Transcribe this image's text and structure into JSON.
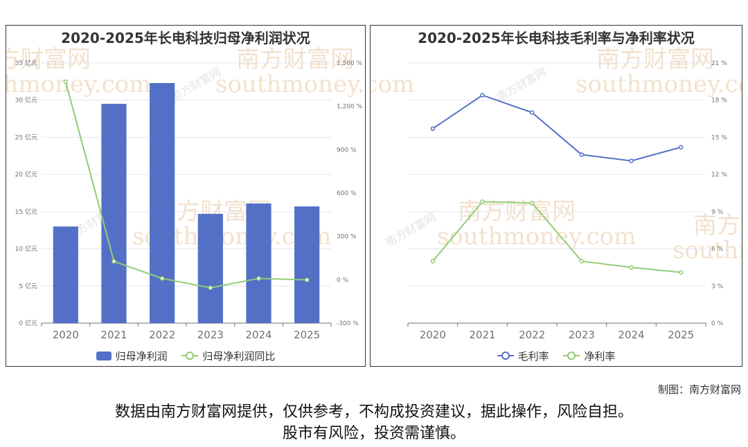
{
  "chart_data": [
    {
      "type": "bar",
      "title": "2020-2025年长电科技归母净利润状况",
      "categories": [
        "2020",
        "2021",
        "2022",
        "2023",
        "2024",
        "2025"
      ],
      "series": [
        {
          "name": "归母净利润",
          "type": "bar",
          "axis": "left",
          "color": "#5470c6",
          "values": [
            13.0,
            29.5,
            32.3,
            14.7,
            16.1,
            15.7
          ]
        },
        {
          "name": "归母净利润同比",
          "type": "line",
          "axis": "right",
          "color": "#91cc75",
          "values": [
            1370,
            127,
            9,
            -55,
            9,
            -1
          ]
        }
      ],
      "y_left": {
        "min": 0,
        "max": 35,
        "step": 5,
        "ticks": [
          "0 亿元",
          "5 亿元",
          "10 亿元",
          "15 亿元",
          "20 亿元",
          "25 亿元",
          "30 亿元",
          "35 亿元"
        ]
      },
      "y_right": {
        "min": -300,
        "max": 1500,
        "step": 300,
        "ticks": [
          "-300 %",
          "0 %",
          "300 %",
          "600 %",
          "900 %",
          "1,200 %",
          "1,500 %"
        ]
      },
      "grid": true,
      "legend": "bottom"
    },
    {
      "type": "line",
      "title": "2020-2025年长电科技毛利率与净利率状况",
      "categories": [
        "2020",
        "2021",
        "2022",
        "2023",
        "2024",
        "2025"
      ],
      "series": [
        {
          "name": "毛利率",
          "color": "#5470c6",
          "values": [
            15.7,
            18.4,
            17.0,
            13.6,
            13.1,
            14.2
          ]
        },
        {
          "name": "净利率",
          "color": "#91cc75",
          "values": [
            5.0,
            9.8,
            9.7,
            5.0,
            4.5,
            4.1
          ]
        }
      ],
      "y_right": {
        "min": 0,
        "max": 21,
        "step": 3,
        "ticks": [
          "0 %",
          "3 %",
          "6 %",
          "9 %",
          "12 %",
          "15 %",
          "18 %",
          "21 %"
        ]
      },
      "grid": true,
      "legend": "bottom"
    }
  ],
  "watermark": {
    "cn": "南方财富网",
    "en": "southmoney.com"
  },
  "credit": "制图：南方财富网",
  "disclaimer": [
    "数据由南方财富网提供，仅供参考，不构成投资建议，据此操作，风险自担。",
    "股市有风险，投资需谨慎。"
  ]
}
